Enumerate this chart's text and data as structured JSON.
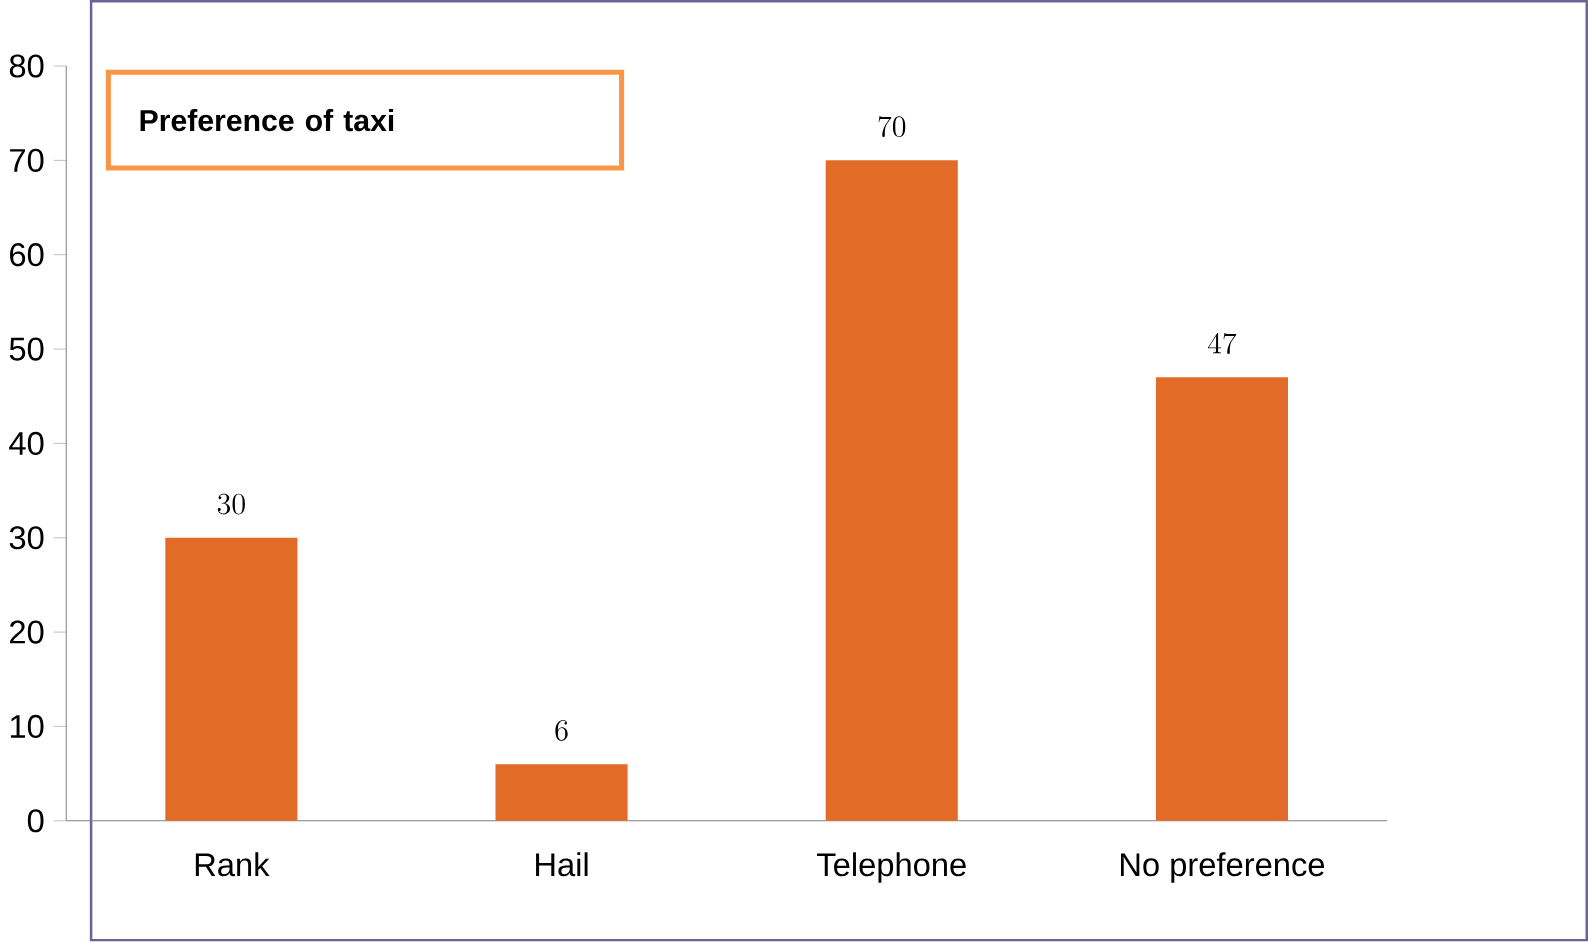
{
  "chart_data": {
    "type": "bar",
    "title": "Preference of taxi",
    "categories": [
      "Rank",
      "Hail",
      "Telephone",
      "No preference"
    ],
    "values": [
      30,
      6,
      70,
      47
    ],
    "color": "#e26b28",
    "ylim": [
      0,
      80
    ],
    "yticks": [
      0,
      10,
      20,
      30,
      40,
      50,
      60,
      70,
      80
    ],
    "data_labels": true
  }
}
